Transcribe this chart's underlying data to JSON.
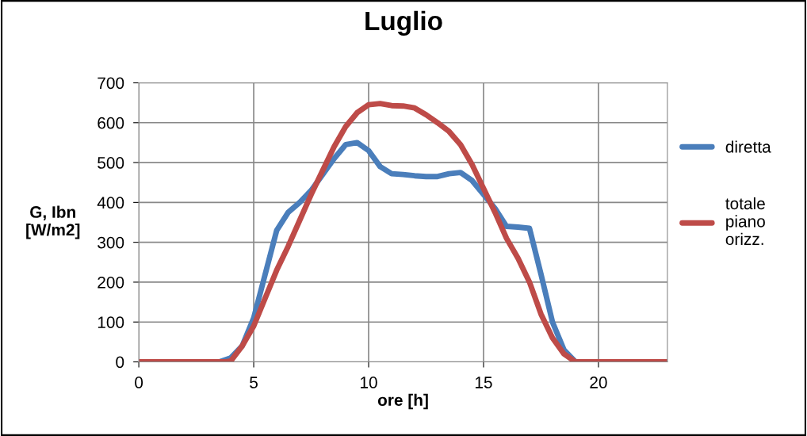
{
  "chart_data": {
    "type": "line",
    "title": "Luglio",
    "xlabel": "ore [h]",
    "ylabel": "G, Ibn\n[W/m2]",
    "xlim": [
      0,
      23
    ],
    "xticks": [
      0,
      5,
      10,
      15,
      20
    ],
    "ylim": [
      0,
      700
    ],
    "yticks": [
      0,
      100,
      200,
      300,
      400,
      500,
      600,
      700
    ],
    "grid": true,
    "legend": "right",
    "marker": "none",
    "line_style": "solid",
    "series": [
      {
        "name": "diretta",
        "color": "#4a7ebb",
        "x": [
          0,
          3,
          3.5,
          4,
          4.5,
          5,
          5.5,
          6,
          6.5,
          7,
          7.5,
          8,
          8.5,
          9,
          9.5,
          10,
          10.5,
          11,
          11.5,
          12,
          12.5,
          13,
          13.5,
          14,
          14.5,
          15,
          15.5,
          16,
          16.5,
          17,
          17.5,
          18,
          18.5,
          19,
          20,
          23
        ],
        "values": [
          0,
          0,
          0,
          10,
          40,
          110,
          220,
          330,
          375,
          400,
          430,
          470,
          510,
          545,
          550,
          530,
          490,
          472,
          470,
          467,
          465,
          465,
          472,
          475,
          455,
          420,
          385,
          340,
          338,
          335,
          220,
          100,
          30,
          0,
          0,
          0
        ]
      },
      {
        "name": "totale\npiano\norizz.",
        "color": "#be4b48",
        "x": [
          0,
          3,
          3.8,
          4,
          4.5,
          5,
          5.5,
          6,
          6.5,
          7,
          7.5,
          8,
          8.5,
          9,
          9.5,
          10,
          10.5,
          11,
          11.5,
          12,
          12.5,
          13,
          13.5,
          14,
          14.5,
          15,
          15.5,
          16,
          16.5,
          17,
          17.5,
          18,
          18.5,
          19,
          20,
          23
        ],
        "values": [
          0,
          0,
          0,
          2,
          40,
          90,
          160,
          230,
          290,
          355,
          420,
          480,
          540,
          590,
          625,
          645,
          648,
          643,
          642,
          637,
          620,
          600,
          578,
          545,
          495,
          435,
          375,
          310,
          260,
          200,
          120,
          60,
          20,
          0,
          0,
          0
        ]
      }
    ]
  }
}
